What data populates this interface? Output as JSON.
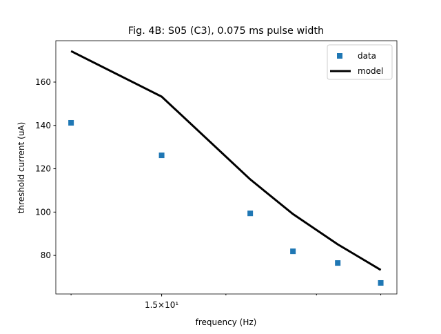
{
  "chart_data": {
    "type": "line",
    "title": "Fig. 4B: S05 (C3), 0.075 ms pulse width",
    "xlabel": "frequency (Hz)",
    "ylabel": "threshold current (uA)",
    "xscale": "log",
    "x": [
      10,
      15,
      22.3,
      27,
      33,
      40
    ],
    "series": [
      {
        "name": "data",
        "color": "#1f77b4",
        "marker": "square",
        "values": [
          141.2,
          126.2,
          99.4,
          81.9,
          76.5,
          67.3
        ]
      },
      {
        "name": "model",
        "color": "#000000",
        "marker": "none",
        "values": [
          174.3,
          153.3,
          115.1,
          99.1,
          85.1,
          73.3
        ]
      }
    ],
    "xlim": [
      9.34,
      43.0
    ],
    "ylim": [
      62.2,
      179.1
    ],
    "xticks": [
      {
        "value": 15,
        "label": "1.5×10¹"
      }
    ],
    "xminorticks": [
      10,
      20,
      30,
      40
    ],
    "yticks": [
      80,
      100,
      120,
      140,
      160
    ],
    "legend": "upper right"
  }
}
